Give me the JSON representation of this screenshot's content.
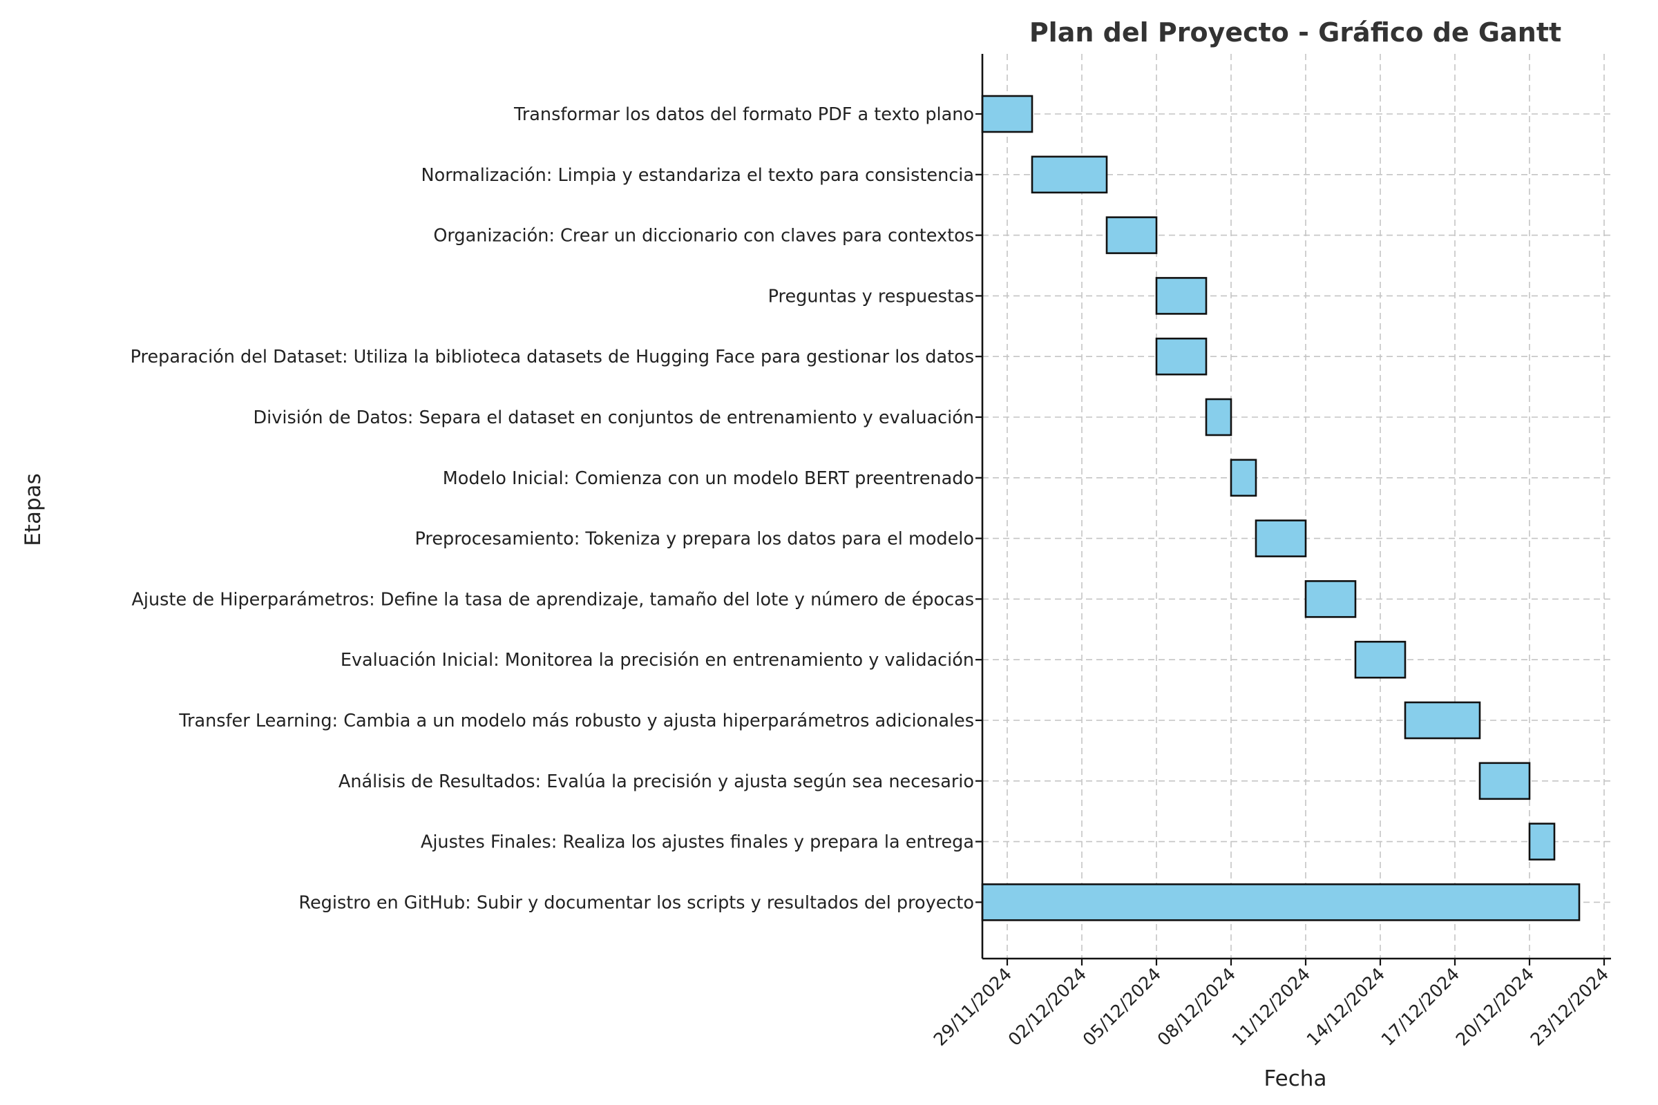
{
  "chart_data": {
    "type": "bar",
    "orientation": "horizontal-gantt",
    "title": "Plan del Proyecto - Gráfico de Gantt",
    "xlabel": "Fecha",
    "ylabel": "Etapas",
    "bar_color": "#87ceeb",
    "edge_color": "#111111",
    "grid": true,
    "xlim": [
      "2024-11-28",
      "2024-12-23"
    ],
    "x_ticks": [
      "2024-11-29",
      "2024-12-02",
      "2024-12-05",
      "2024-12-08",
      "2024-12-11",
      "2024-12-14",
      "2024-12-17",
      "2024-12-20",
      "2024-12-23"
    ],
    "x_tick_labels": [
      "29/11/2024",
      "02/12/2024",
      "05/12/2024",
      "08/12/2024",
      "11/12/2024",
      "14/12/2024",
      "17/12/2024",
      "20/12/2024",
      "23/12/2024"
    ],
    "tasks": [
      {
        "name": "Transformar los datos del formato PDF a texto plano",
        "start": "2024-11-28",
        "end": "2024-11-30"
      },
      {
        "name": "Normalización: Limpia y estandariza el texto para consistencia",
        "start": "2024-11-30",
        "end": "2024-12-03"
      },
      {
        "name": "Organización: Crear un diccionario con claves para contextos",
        "start": "2024-12-03",
        "end": "2024-12-05"
      },
      {
        "name": "Preguntas y respuestas",
        "start": "2024-12-05",
        "end": "2024-12-07"
      },
      {
        "name": "Preparación del Dataset: Utiliza la biblioteca datasets de Hugging Face para gestionar los datos",
        "start": "2024-12-05",
        "end": "2024-12-07"
      },
      {
        "name": "División de Datos: Separa el dataset en conjuntos de entrenamiento y evaluación",
        "start": "2024-12-07",
        "end": "2024-12-08"
      },
      {
        "name": "Modelo Inicial: Comienza con un modelo BERT preentrenado",
        "start": "2024-12-08",
        "end": "2024-12-09"
      },
      {
        "name": "Preprocesamiento: Tokeniza y prepara los datos para el modelo",
        "start": "2024-12-09",
        "end": "2024-12-11"
      },
      {
        "name": "Ajuste de Hiperparámetros: Define la tasa de aprendizaje, tamaño del lote y número de épocas",
        "start": "2024-12-11",
        "end": "2024-12-13"
      },
      {
        "name": "Evaluación Inicial: Monitorea la precisión en entrenamiento y validación",
        "start": "2024-12-13",
        "end": "2024-12-15"
      },
      {
        "name": "Transfer Learning: Cambia a un modelo más robusto y ajusta hiperparámetros adicionales",
        "start": "2024-12-15",
        "end": "2024-12-18"
      },
      {
        "name": "Análisis de Resultados: Evalúa la precisión y ajusta según sea necesario",
        "start": "2024-12-18",
        "end": "2024-12-20"
      },
      {
        "name": "Ajustes Finales: Realiza los ajustes finales y prepara la entrega",
        "start": "2024-12-20",
        "end": "2024-12-21"
      },
      {
        "name": "Registro en GitHub: Subir y documentar los scripts y resultados del proyecto",
        "start": "2024-11-28",
        "end": "2024-12-22"
      }
    ]
  }
}
